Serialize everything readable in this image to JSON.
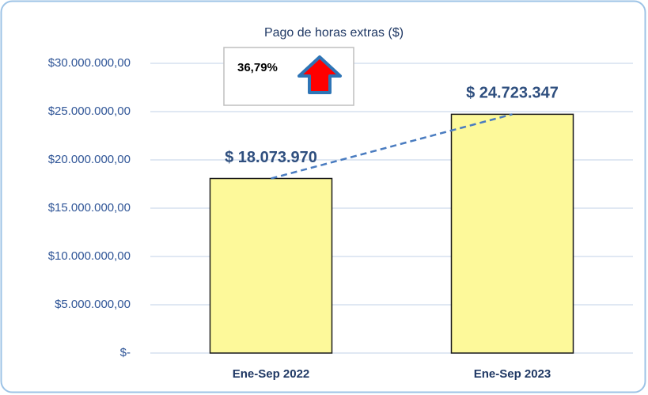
{
  "chart_data": {
    "type": "bar",
    "title": "Pago de horas extras ($)",
    "annotation": "36,79%",
    "categories": [
      "Ene-Sep 2022",
      "Ene-Sep 2023"
    ],
    "values": [
      18073970,
      24723347
    ],
    "value_labels": [
      "$ 18.073.970",
      "$ 24.723.347"
    ],
    "color": "#fdf99a",
    "trendline": true,
    "ylim": [
      0,
      30000000
    ],
    "yticks": [
      {
        "value": 0,
        "label": "$-"
      },
      {
        "value": 5000000,
        "label": "$5.000.000,00"
      },
      {
        "value": 10000000,
        "label": "$10.000.000,00"
      },
      {
        "value": 15000000,
        "label": "$15.000.000,00"
      },
      {
        "value": 20000000,
        "label": "$20.000.000,00"
      },
      {
        "value": 25000000,
        "label": "$25.000.000,00"
      },
      {
        "value": 30000000,
        "label": "$30.000.000,00"
      }
    ],
    "grid": true
  }
}
